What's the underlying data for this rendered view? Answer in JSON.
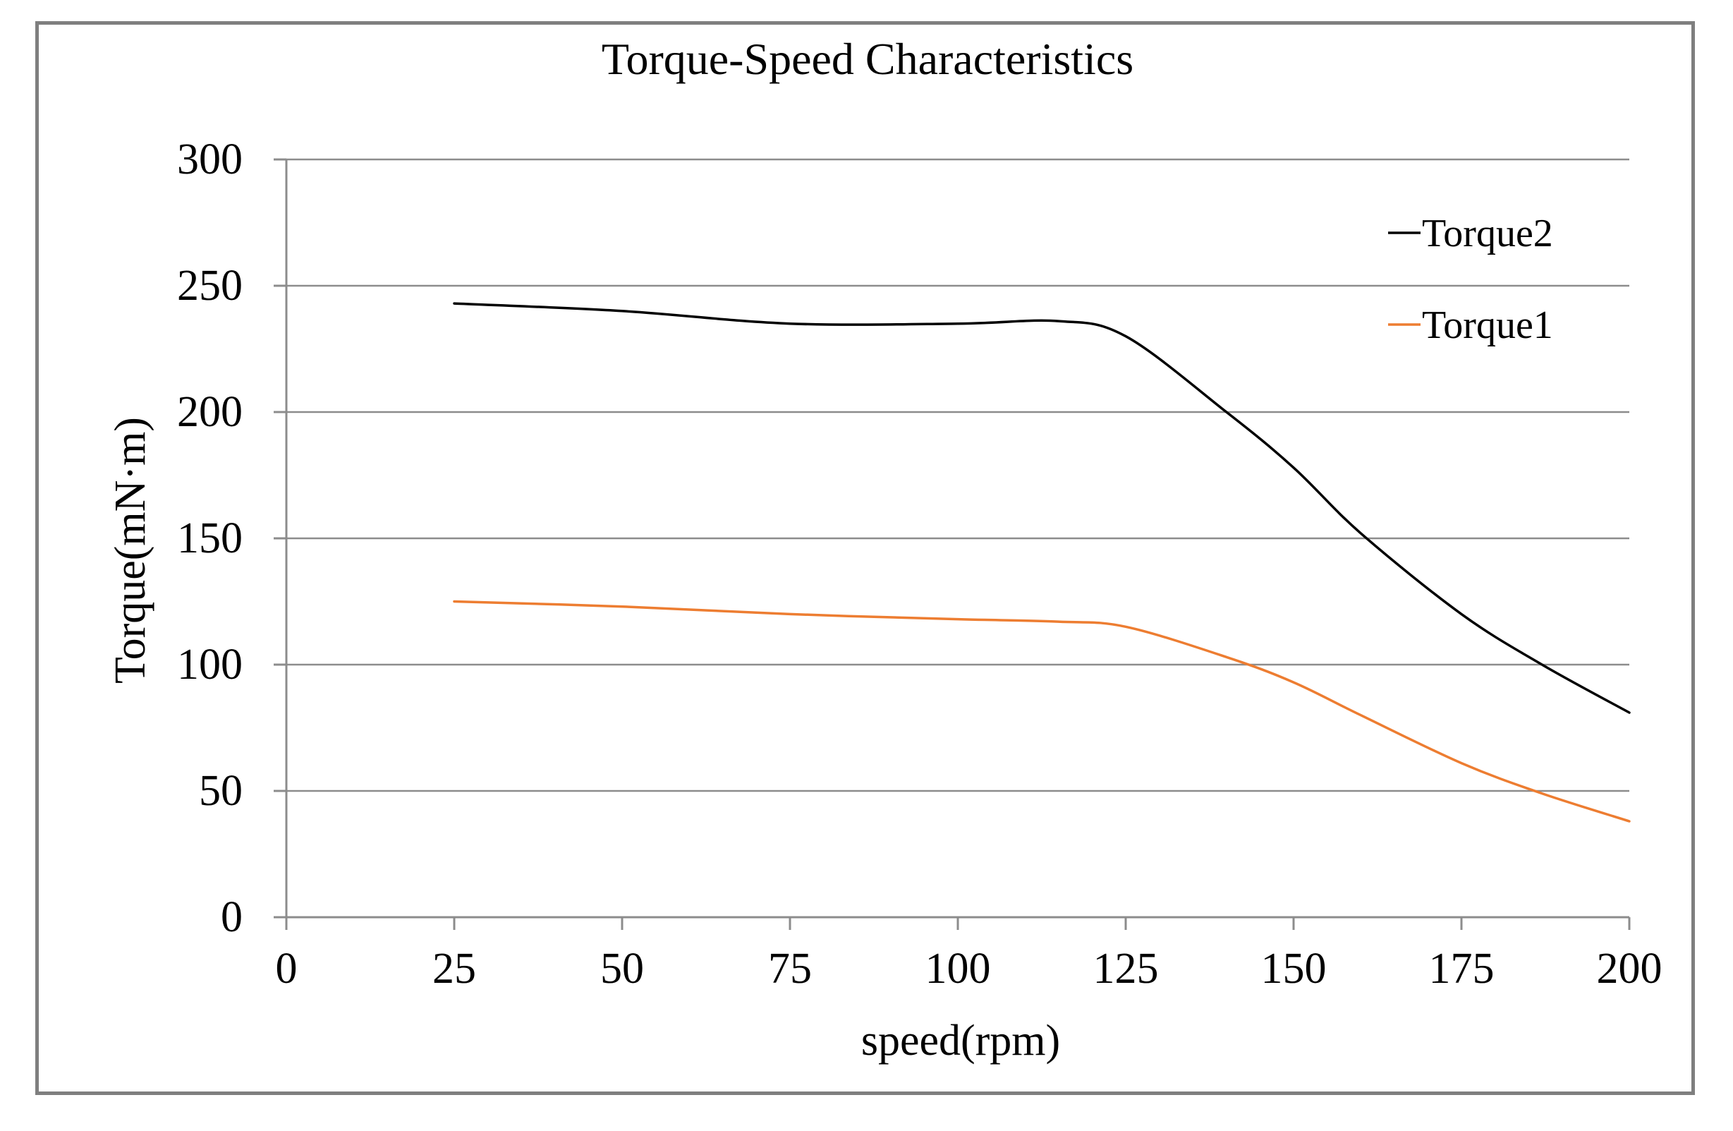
{
  "chart_data": {
    "type": "line",
    "title": "Torque-Speed Characteristics",
    "xlabel": "speed(rpm)",
    "ylabel": "Torque(mN·m)",
    "xlim": [
      0,
      200
    ],
    "ylim": [
      0,
      300
    ],
    "xticks": [
      0,
      25,
      50,
      75,
      100,
      125,
      150,
      175,
      200
    ],
    "yticks": [
      0,
      50,
      100,
      150,
      200,
      250,
      300
    ],
    "grid": true,
    "legend_position": "top-right",
    "series": [
      {
        "name": "Torque2",
        "color": "#000000",
        "x": [
          25,
          50,
          75,
          100,
          115,
          125,
          140,
          150,
          160,
          175,
          187,
          200
        ],
        "y": [
          243,
          240,
          235,
          235,
          236,
          230,
          200,
          178,
          152,
          120,
          100,
          81
        ]
      },
      {
        "name": "Torque1",
        "color": "#ed7d31",
        "x": [
          25,
          50,
          75,
          100,
          115,
          125,
          140,
          150,
          160,
          175,
          187,
          200
        ],
        "y": [
          125,
          123,
          120,
          118,
          117,
          115,
          103,
          93,
          80,
          61,
          49,
          38
        ]
      }
    ]
  }
}
